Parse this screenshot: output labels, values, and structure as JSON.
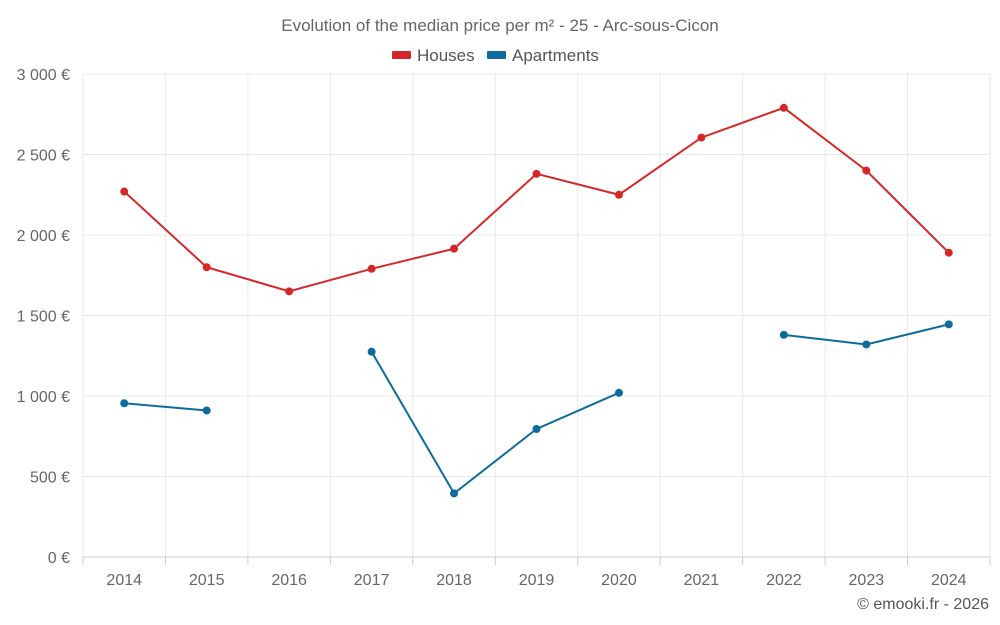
{
  "chart_data": {
    "type": "line",
    "title": "Evolution of the median price per m² - 25 - Arc-sous-Cicon",
    "categories": [
      "2014",
      "2015",
      "2016",
      "2017",
      "2018",
      "2019",
      "2020",
      "2021",
      "2022",
      "2023",
      "2024"
    ],
    "ylim": [
      0,
      3000
    ],
    "yticks": [
      0,
      500,
      1000,
      1500,
      2000,
      2500,
      3000
    ],
    "ytick_labels": [
      "0 €",
      "500 €",
      "1 000 €",
      "1 500 €",
      "2 000 €",
      "2 500 €",
      "3 000 €"
    ],
    "grid": true,
    "legend_position": "top-center",
    "series": [
      {
        "name": "Houses",
        "color": "#d62728",
        "values": [
          2270,
          1800,
          1650,
          1790,
          1915,
          2380,
          2250,
          2605,
          2790,
          2400,
          1890
        ]
      },
      {
        "name": "Apartments",
        "color": "#0f6b9b",
        "values": [
          955,
          910,
          null,
          1275,
          395,
          795,
          1020,
          null,
          1380,
          1320,
          1445
        ]
      }
    ]
  },
  "credit": "© emooki.fr - 2026"
}
